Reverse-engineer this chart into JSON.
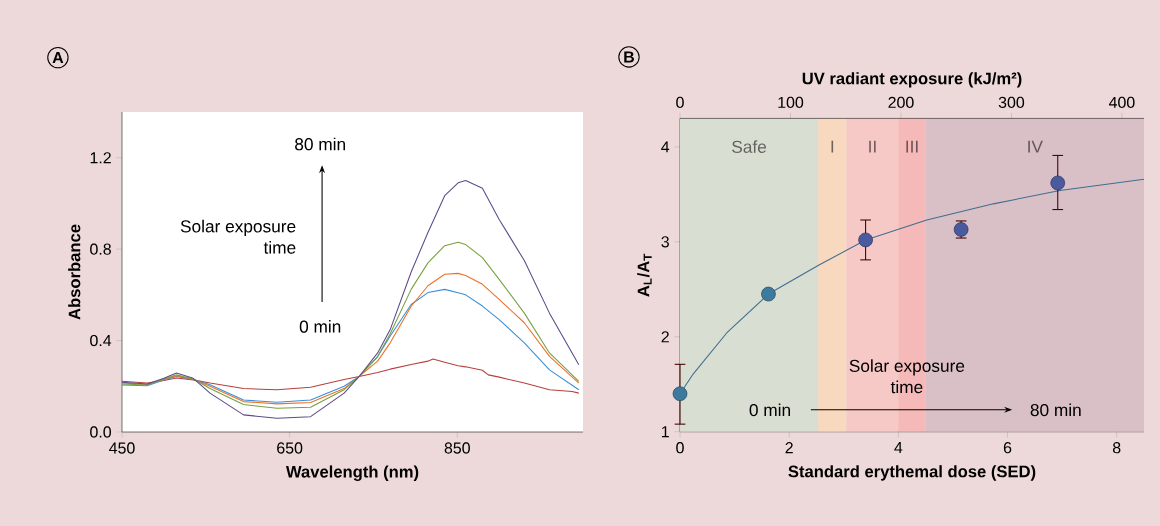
{
  "chart_data": [
    {
      "type": "line",
      "xlabel": "Wavelength (nm)",
      "ylabel": "Absorbance",
      "xlim": [
        450,
        1000
      ],
      "ylim": [
        0,
        1.4
      ],
      "xticks": [
        450,
        650,
        850
      ],
      "yticks": [
        {
          "value": 0,
          "label": "0.0"
        },
        0.4,
        0.8,
        1.2
      ],
      "annotations": [
        "A",
        "80 min",
        "Solar exposure time",
        "0 min"
      ],
      "series": [
        {
          "color": "#b8403a",
          "x": [
            450,
            480,
            500,
            515,
            535,
            555,
            595,
            635,
            675,
            715,
            733,
            755,
            770,
            795,
            815,
            821,
            835,
            851,
            860,
            880,
            887,
            900,
            930,
            960,
            987,
            995
          ],
          "values": [
            0.222,
            0.214,
            0.225,
            0.236,
            0.228,
            0.214,
            0.19,
            0.185,
            0.196,
            0.23,
            0.243,
            0.26,
            0.275,
            0.295,
            0.31,
            0.319,
            0.305,
            0.29,
            0.285,
            0.27,
            0.25,
            0.24,
            0.214,
            0.185,
            0.177,
            0.17
          ]
        },
        {
          "color": "#3a8fd6",
          "x": [
            450,
            480,
            500,
            515,
            535,
            555,
            595,
            635,
            675,
            715,
            733,
            755,
            770,
            795,
            815,
            835,
            851,
            860,
            880,
            900,
            930,
            960,
            995
          ],
          "values": [
            0.206,
            0.202,
            0.228,
            0.243,
            0.23,
            0.207,
            0.14,
            0.13,
            0.14,
            0.2,
            0.243,
            0.33,
            0.42,
            0.558,
            0.61,
            0.624,
            0.609,
            0.6,
            0.551,
            0.492,
            0.39,
            0.272,
            0.185
          ]
        },
        {
          "color": "#ee7028",
          "x": [
            450,
            480,
            500,
            515,
            535,
            555,
            595,
            635,
            675,
            715,
            733,
            755,
            770,
            795,
            815,
            835,
            851,
            860,
            880,
            900,
            930,
            960,
            995
          ],
          "values": [
            0.214,
            0.208,
            0.23,
            0.246,
            0.23,
            0.2,
            0.133,
            0.123,
            0.129,
            0.19,
            0.243,
            0.31,
            0.39,
            0.55,
            0.64,
            0.69,
            0.694,
            0.685,
            0.646,
            0.58,
            0.478,
            0.331,
            0.214
          ]
        },
        {
          "color": "#76a040",
          "x": [
            450,
            480,
            500,
            515,
            535,
            555,
            595,
            635,
            675,
            715,
            733,
            755,
            770,
            795,
            815,
            835,
            851,
            860,
            880,
            900,
            930,
            960,
            995
          ],
          "values": [
            0.21,
            0.206,
            0.232,
            0.25,
            0.232,
            0.19,
            0.12,
            0.104,
            0.108,
            0.185,
            0.243,
            0.33,
            0.43,
            0.624,
            0.74,
            0.815,
            0.83,
            0.82,
            0.763,
            0.668,
            0.52,
            0.346,
            0.221
          ]
        },
        {
          "color": "#5c4b8a",
          "x": [
            450,
            480,
            500,
            515,
            535,
            555,
            595,
            635,
            675,
            715,
            733,
            755,
            770,
            795,
            815,
            835,
            851,
            860,
            880,
            900,
            930,
            960,
            995
          ],
          "values": [
            0.218,
            0.21,
            0.235,
            0.258,
            0.235,
            0.17,
            0.075,
            0.06,
            0.067,
            0.17,
            0.243,
            0.346,
            0.448,
            0.7,
            0.873,
            1.034,
            1.09,
            1.1,
            1.066,
            0.93,
            0.75,
            0.52,
            0.294
          ]
        }
      ]
    },
    {
      "type": "scatter",
      "xlabel": "Standard erythemal dose (SED)",
      "ylabel": "A$_{L}$/A$_{T}$",
      "x2label": "UV radiant exposure (kJ/m²)",
      "xlim": [
        0,
        8.5
      ],
      "ylim": [
        1,
        4.3
      ],
      "xticks": [
        0,
        2,
        4,
        6,
        8
      ],
      "yticks": [
        1,
        2,
        3,
        4
      ],
      "x2lim": [
        0,
        420
      ],
      "x2ticks": [
        0,
        100,
        200,
        300,
        400
      ],
      "bands": [
        {
          "axis": "x",
          "from": 0,
          "to": 2.53,
          "label": "Safe",
          "color": "#d9ded2"
        },
        {
          "axis": "x",
          "from": 2.53,
          "to": 3.05,
          "label": "I",
          "color": "#f8d9bf"
        },
        {
          "axis": "x",
          "from": 3.05,
          "to": 4.0,
          "label": "II",
          "color": "#f7c9c6"
        },
        {
          "axis": "x",
          "from": 4.0,
          "to": 4.5,
          "label": "III",
          "color": "#f5b9b9"
        },
        {
          "axis": "x",
          "from": 4.5,
          "to": 8.5,
          "label": "IV",
          "color": "#d9c0c7"
        }
      ],
      "annotations": [
        "B",
        "Solar exposure time",
        "0 min",
        "80 min"
      ],
      "series": [
        {
          "x": [
            0,
            1.62,
            3.4,
            5.15,
            6.92
          ],
          "values": [
            1.4,
            2.45,
            3.02,
            3.13,
            3.62
          ],
          "colors": [
            "#3d7a9e",
            "#3d7a9e",
            "#4a5a9e",
            "#4a5a9e",
            "#4a5a9e"
          ],
          "errors": [
            [
              1.08,
              1.71
            ],
            null,
            [
              2.81,
              3.23
            ],
            [
              3.04,
              3.22
            ],
            [
              3.34,
              3.91
            ]
          ]
        },
        {
          "type": "line",
          "color": "#3f6e90",
          "x": [
            0,
            0.244,
            0.855,
            1.62,
            2.53,
            3.4,
            4.52,
            5.74,
            6.96,
            8.5
          ],
          "values": [
            1.4,
            1.61,
            2.04,
            2.45,
            2.75,
            3.02,
            3.23,
            3.4,
            3.54,
            3.66
          ]
        }
      ]
    }
  ]
}
